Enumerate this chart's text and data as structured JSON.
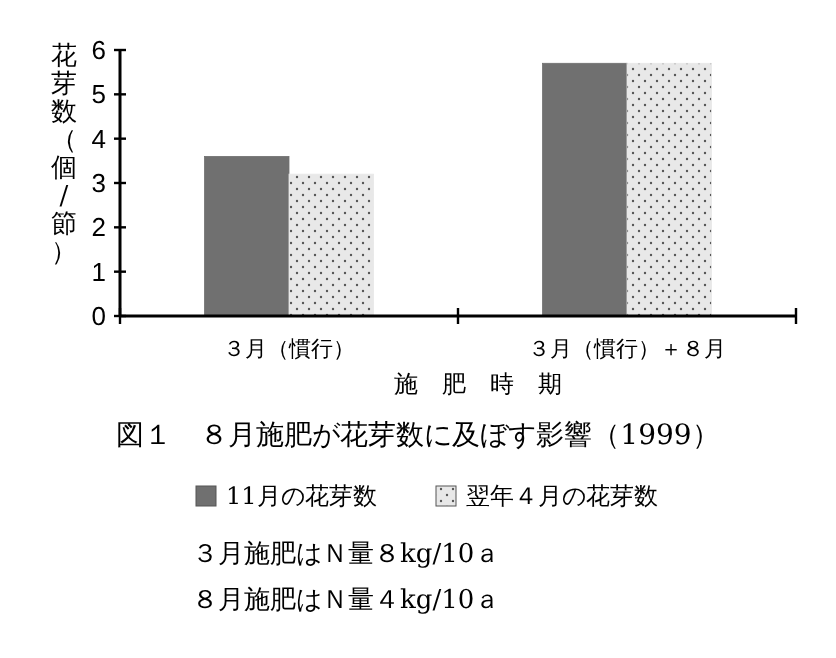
{
  "chart_data": {
    "type": "bar",
    "title": "図１　８月施肥が花芽数に及ぼす影響（1999）",
    "xlabel": "施　肥　時　期",
    "ylabel": "花芽数（個/節）",
    "categories": [
      "３月（慣行）",
      "３月（慣行）＋８月"
    ],
    "series": [
      {
        "name": "11月の花芽数",
        "color": "#707070",
        "values": [
          3.6,
          5.7
        ]
      },
      {
        "name": "翌年４月の花芽数",
        "color": "#e8e8e8",
        "values": [
          3.2,
          5.7
        ]
      }
    ],
    "ylim": [
      0,
      6
    ],
    "yticks": [
      0,
      1,
      2,
      3,
      4,
      5,
      6
    ],
    "legend": "bottom",
    "grid": false,
    "annotations": [
      "３月施肥はＮ量８kg/10ａ",
      "８月施肥はＮ量４kg/10ａ"
    ]
  }
}
